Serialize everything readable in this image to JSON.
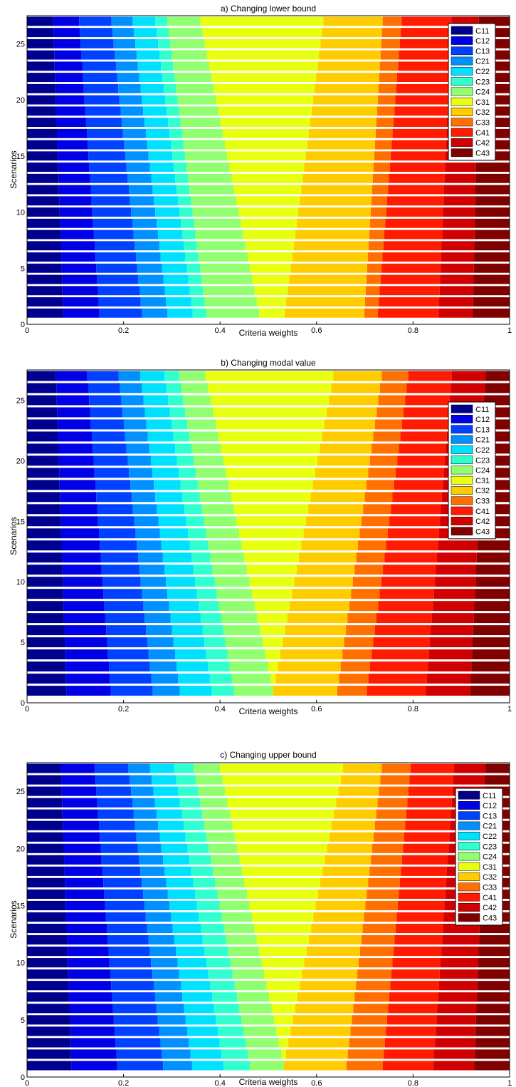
{
  "colors": {
    "C11": "#00008f",
    "C12": "#0000e6",
    "C13": "#0040ff",
    "C21": "#0090ff",
    "C22": "#00e0ff",
    "C23": "#30ffd0",
    "C24": "#90ff70",
    "C31": "#e8ff10",
    "C32": "#ffcc00",
    "C33": "#ff7000",
    "C41": "#ff1a00",
    "C42": "#d00000",
    "C43": "#800000"
  },
  "chart_data": [
    {
      "type": "bar",
      "orientation": "horizontal-stacked",
      "title": "a) Changing lower bound",
      "xlabel": "Criteria weights",
      "ylabel": "Scenarios",
      "xlim": [
        0,
        1
      ],
      "ylim": [
        0,
        27.5
      ],
      "xticks": [
        "0",
        "0.2",
        "0.4",
        "0.6",
        "0.8",
        "1"
      ],
      "yticks": [
        "5",
        "10",
        "15",
        "20",
        "25"
      ],
      "legend_position": "top-right",
      "series_names": [
        "C11",
        "C12",
        "C13",
        "C21",
        "C22",
        "C23",
        "C24",
        "C31",
        "C32",
        "C33",
        "C41",
        "C42",
        "C43"
      ],
      "scenario_first": [
        0.075,
        0.075,
        0.088,
        0.053,
        0.052,
        0.028,
        0.11,
        0.053,
        0.165,
        0.028,
        0.126,
        0.071,
        0.076
      ],
      "scenario_last": [
        0.055,
        0.055,
        0.068,
        0.045,
        0.048,
        0.025,
        0.07,
        0.26,
        0.125,
        0.04,
        0.105,
        0.058,
        0.065
      ]
    },
    {
      "type": "bar",
      "orientation": "horizontal-stacked",
      "title": "b) Changing modal value",
      "xlabel": "Criteria weights",
      "ylabel": "Scenarios",
      "xlim": [
        0,
        1
      ],
      "ylim": [
        0,
        27.5
      ],
      "xticks": [
        "0",
        "0.2",
        "0.4",
        "0.6",
        "0.8",
        "1"
      ],
      "yticks": [
        "5",
        "10",
        "15",
        "20",
        "25"
      ],
      "legend_position": "top-right",
      "series_names": [
        "C11",
        "C12",
        "C13",
        "C21",
        "C22",
        "C23",
        "C24",
        "C31",
        "C32",
        "C33",
        "C41",
        "C42",
        "C43"
      ],
      "scenario_first": [
        0.08,
        0.09,
        0.085,
        0.055,
        0.065,
        0.045,
        0.08,
        0.0,
        0.13,
        0.06,
        0.12,
        0.09,
        0.08
      ],
      "scenario_last": [
        0.06,
        0.065,
        0.065,
        0.045,
        0.05,
        0.03,
        0.055,
        0.265,
        0.1,
        0.055,
        0.09,
        0.07,
        0.05
      ]
    },
    {
      "type": "bar",
      "orientation": "horizontal-stacked",
      "title": "c) Changing upper bound",
      "xlabel": "Criteria weights",
      "ylabel": "Scenarios",
      "xlim": [
        0,
        1
      ],
      "ylim": [
        0,
        27.5
      ],
      "xticks": [
        "0",
        "0.2",
        "0.4",
        "0.6",
        "0.8",
        "1"
      ],
      "yticks": [
        "5",
        "10",
        "15",
        "20",
        "25"
      ],
      "legend_position": "top-right",
      "series_names": [
        "C11",
        "C12",
        "C13",
        "C21",
        "C22",
        "C23",
        "C24",
        "C31",
        "C32",
        "C33",
        "C41",
        "C42",
        "C43"
      ],
      "scenario_first": [
        0.092,
        0.095,
        0.095,
        0.06,
        0.065,
        0.055,
        0.07,
        0.0,
        0.13,
        0.075,
        0.105,
        0.085,
        0.073
      ],
      "scenario_last": [
        0.07,
        0.07,
        0.07,
        0.045,
        0.05,
        0.04,
        0.055,
        0.255,
        0.08,
        0.06,
        0.09,
        0.065,
        0.05
      ]
    }
  ]
}
